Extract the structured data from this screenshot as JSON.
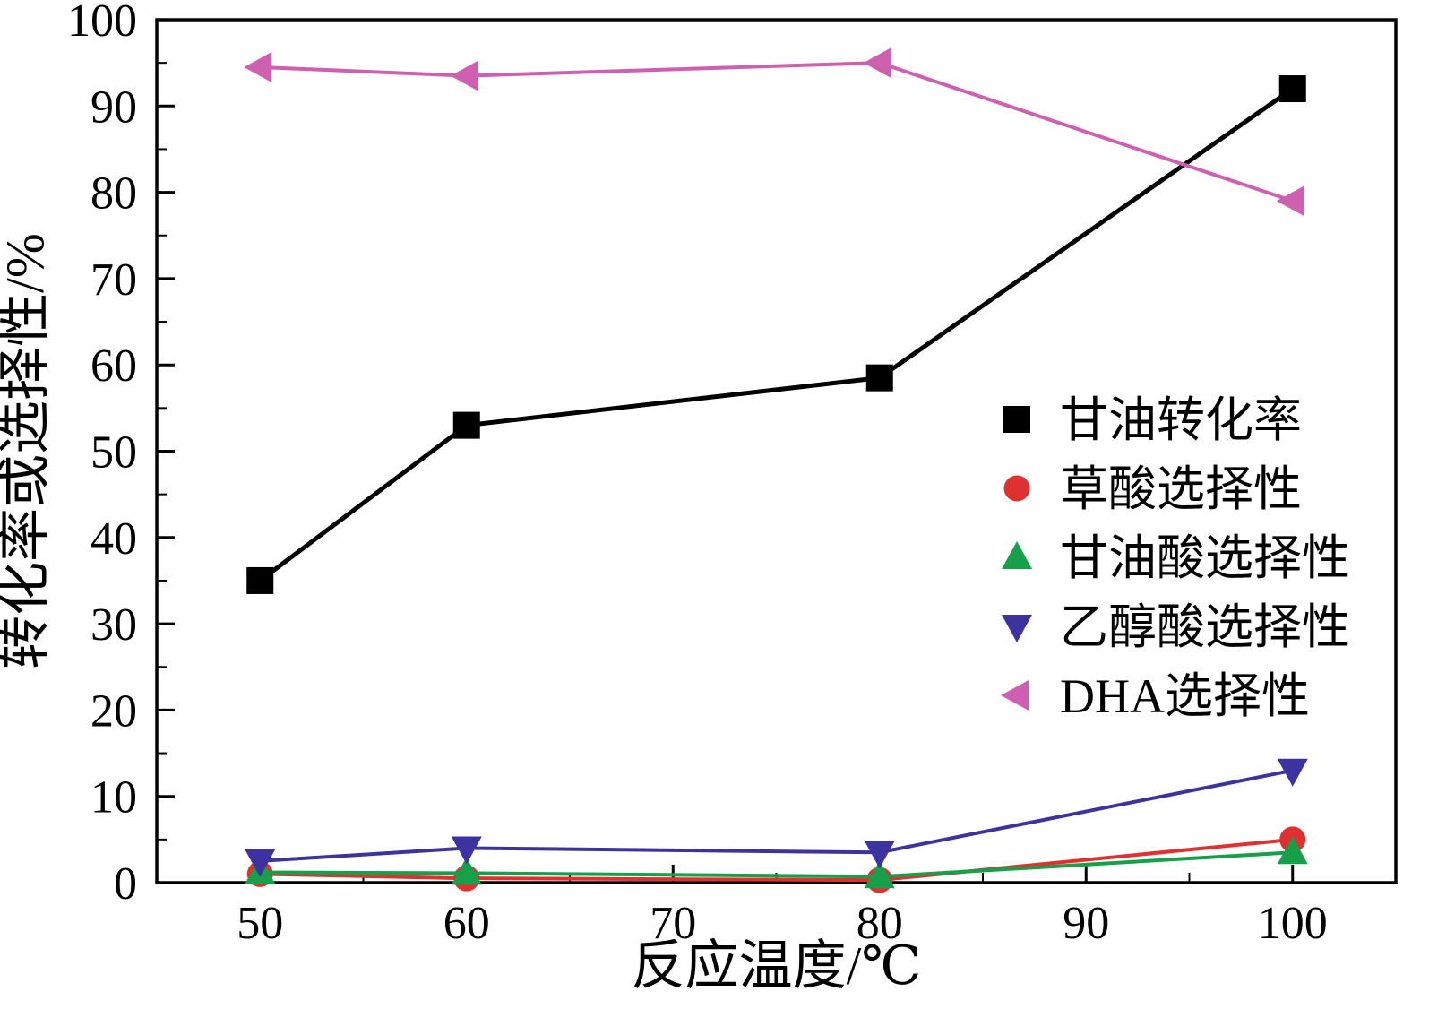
{
  "chart_data": {
    "type": "line",
    "title": "",
    "xlabel": "反应温度/℃",
    "ylabel": "转化率或选择性/%",
    "x": [
      50,
      60,
      80,
      100
    ],
    "xlim": [
      45,
      105
    ],
    "ylim": [
      0,
      100
    ],
    "xticks": [
      50,
      60,
      70,
      80,
      90,
      100
    ],
    "yticks": [
      0,
      10,
      20,
      30,
      40,
      50,
      60,
      70,
      80,
      90,
      100
    ],
    "minor_tick_step_x": 5,
    "minor_tick_step_y": 5,
    "grid": false,
    "legend_position": "inside-right-middle",
    "series": [
      {
        "name": "甘油转化率",
        "marker": "square",
        "color": "#000000",
        "values": [
          35,
          53,
          58.5,
          92
        ]
      },
      {
        "name": "草酸选择性",
        "marker": "circle",
        "color": "#e03030",
        "values": [
          1,
          0.5,
          0.3,
          5
        ]
      },
      {
        "name": "甘油酸选择性",
        "marker": "triangle-up",
        "color": "#17a04a",
        "values": [
          1.2,
          1.1,
          0.7,
          3.5
        ]
      },
      {
        "name": "乙醇酸选择性",
        "marker": "triangle-down",
        "color": "#3d33a0",
        "values": [
          2.5,
          4,
          3.5,
          13
        ]
      },
      {
        "name": "DHA选择性",
        "marker": "triangle-left",
        "color": "#cf5fb1",
        "values": [
          94.5,
          93.5,
          95,
          79
        ]
      }
    ],
    "axis_color": "#000000"
  }
}
